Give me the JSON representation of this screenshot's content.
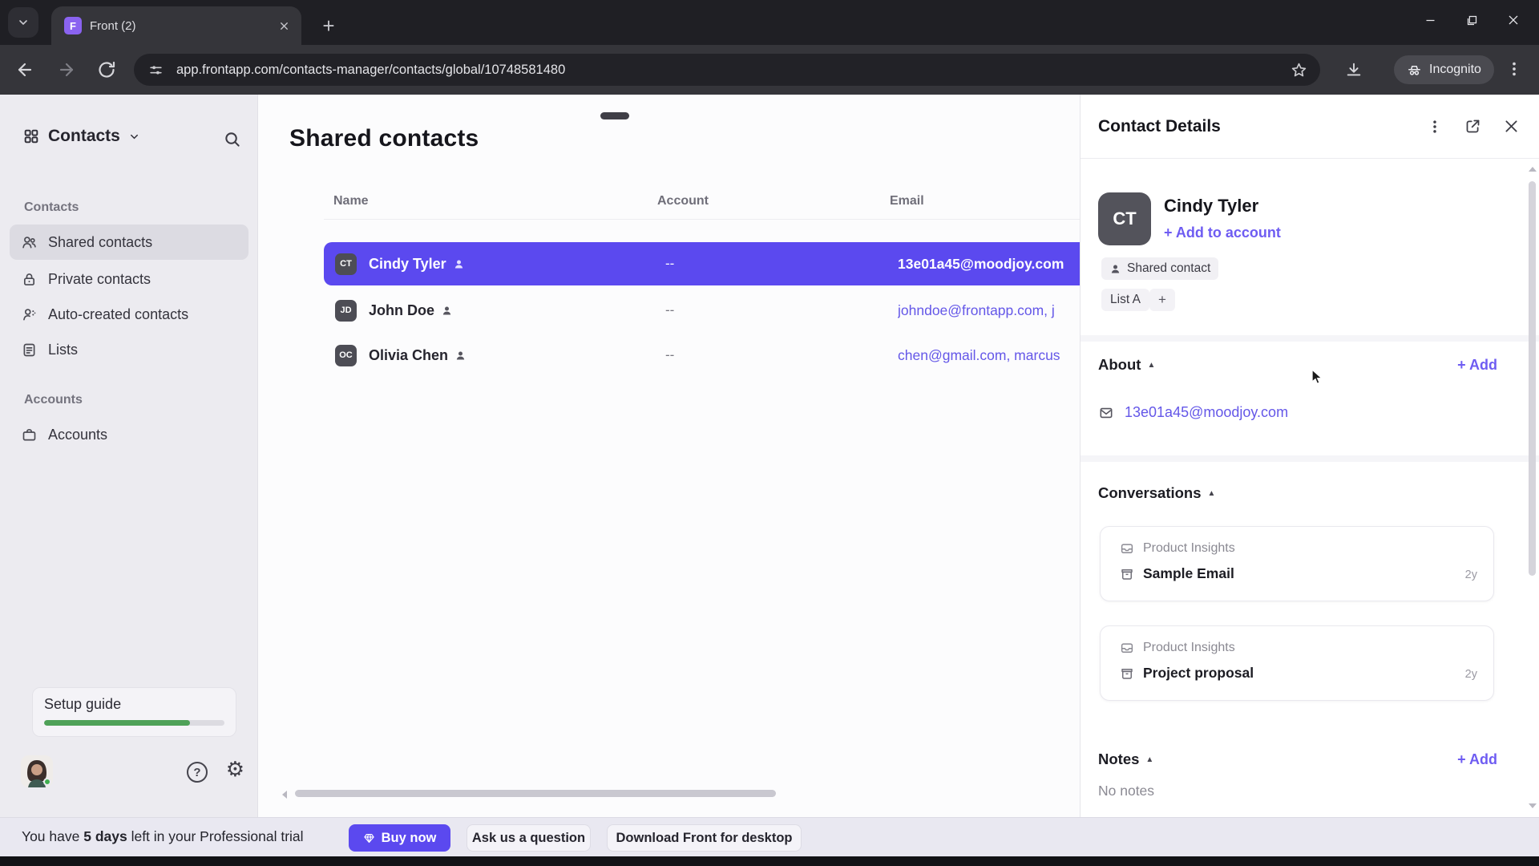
{
  "browser": {
    "tab_title": "Front (2)",
    "favicon_letter": "F",
    "url": "app.frontapp.com/contacts-manager/contacts/global/10748581480",
    "incognito_label": "Incognito"
  },
  "sidebar": {
    "workspace_title": "Contacts",
    "sections": [
      {
        "label": "Contacts",
        "items": [
          {
            "label": "Shared contacts"
          },
          {
            "label": "Private contacts"
          },
          {
            "label": "Auto-created contacts"
          },
          {
            "label": "Lists"
          }
        ]
      },
      {
        "label": "Accounts",
        "items": [
          {
            "label": "Accounts"
          }
        ]
      }
    ],
    "setup_guide": {
      "label": "Setup guide",
      "progress_percent": 81
    }
  },
  "main": {
    "title": "Shared contacts",
    "table": {
      "columns": [
        "Name",
        "Account",
        "Email"
      ],
      "rows": [
        {
          "initials": "CT",
          "name": "Cindy Tyler",
          "account": "--",
          "email": "13e01a45@moodjoy.com",
          "selected": true
        },
        {
          "initials": "JD",
          "name": "John Doe",
          "account": "--",
          "email": "johndoe@frontapp.com, j",
          "selected": false
        },
        {
          "initials": "OC",
          "name": "Olivia Chen",
          "account": "--",
          "email": "chen@gmail.com, marcus",
          "selected": false
        }
      ]
    }
  },
  "panel": {
    "title": "Contact Details",
    "contact": {
      "initials": "CT",
      "name": "Cindy Tyler",
      "add_to_account_label": "+ Add to account",
      "type_badge": "Shared contact",
      "list_tag": "List A",
      "add_tag_label": "+"
    },
    "about": {
      "title": "About",
      "add_label": "+ Add",
      "email": "13e01a45@moodjoy.com"
    },
    "conversations": {
      "title": "Conversations",
      "items": [
        {
          "inbox": "Product Insights",
          "subject": "Sample Email",
          "age": "2y"
        },
        {
          "inbox": "Product Insights",
          "subject": "Project proposal",
          "age": "2y"
        }
      ]
    },
    "notes": {
      "title": "Notes",
      "add_label": "+ Add",
      "empty_text": "No notes"
    }
  },
  "trial_bar": {
    "prefix": "You have",
    "days": "5 days",
    "suffix": "left in your Professional trial",
    "buy_now_label": "Buy now",
    "ask_label": "Ask us a question",
    "download_label": "Download Front for desktop"
  },
  "colors": {
    "accent_purple": "#5b49ef",
    "link_purple": "#6457e8",
    "progress_green": "#4fa158",
    "selected_sidebar": "#dcdbe2"
  }
}
